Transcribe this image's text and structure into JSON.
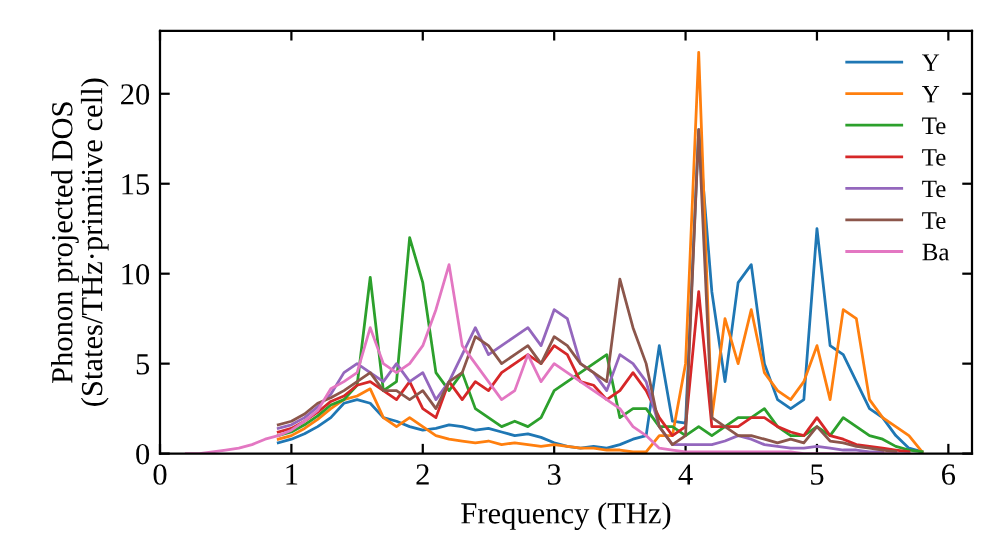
{
  "chart_data": {
    "type": "line",
    "xlabel": "Frequency (THz)",
    "ylabel": "Phonon projected DOS\n(States/THz·primitive cell)",
    "x": [
      0.2,
      0.3,
      0.4,
      0.5,
      0.6,
      0.7,
      0.8,
      0.9,
      1.0,
      1.1,
      1.2,
      1.3,
      1.4,
      1.5,
      1.6,
      1.7,
      1.8,
      1.9,
      2.0,
      2.1,
      2.2,
      2.3,
      2.4,
      2.5,
      2.6,
      2.7,
      2.8,
      2.9,
      3.0,
      3.1,
      3.2,
      3.3,
      3.4,
      3.5,
      3.6,
      3.7,
      3.8,
      3.9,
      4.0,
      4.1,
      4.2,
      4.3,
      4.4,
      4.5,
      4.6,
      4.7,
      4.8,
      4.9,
      5.0,
      5.1,
      5.2,
      5.3,
      5.4,
      5.5,
      5.6,
      5.7,
      5.8
    ],
    "series": [
      {
        "name": "Y",
        "color": "#1f77b4",
        "values": [
          null,
          null,
          null,
          null,
          null,
          null,
          null,
          0.6,
          0.8,
          1.1,
          1.5,
          2.0,
          2.8,
          3.0,
          2.8,
          2.0,
          1.8,
          1.5,
          1.3,
          1.4,
          1.6,
          1.5,
          1.3,
          1.4,
          1.2,
          1.0,
          1.1,
          0.9,
          0.6,
          0.4,
          0.3,
          0.4,
          0.3,
          0.5,
          0.8,
          1.0,
          6.0,
          1.8,
          1.7,
          18,
          9.0,
          4.0,
          9.5,
          10.5,
          5,
          3,
          2.5,
          3,
          12.5,
          6,
          5.5,
          4,
          2.5,
          2.0,
          1.0,
          0.3,
          0.1
        ]
      },
      {
        "name": "Y",
        "color": "#ff7f0e",
        "values": [
          null,
          null,
          null,
          null,
          null,
          null,
          null,
          0.8,
          1.0,
          1.4,
          1.9,
          2.5,
          3.0,
          3.2,
          3.6,
          2.0,
          1.5,
          2.0,
          1.5,
          1.0,
          0.8,
          0.7,
          0.6,
          0.7,
          0.5,
          0.6,
          0.5,
          0.4,
          0.5,
          0.4,
          0.3,
          0.3,
          0.2,
          0.2,
          0.1,
          0.1,
          1.0,
          1.0,
          5,
          22.3,
          2.0,
          7.5,
          5,
          8,
          4.5,
          3.5,
          3,
          4,
          6,
          3,
          8,
          7.5,
          3,
          2,
          1.5,
          1.0,
          0.1
        ]
      },
      {
        "name": "Te",
        "color": "#2ca02c",
        "values": [
          null,
          null,
          null,
          null,
          null,
          null,
          null,
          1.0,
          1.2,
          1.6,
          2.1,
          2.7,
          3.0,
          3.8,
          9.8,
          3.5,
          4.0,
          12.0,
          9.5,
          4.5,
          3.5,
          4.5,
          2.5,
          2.0,
          1.5,
          1.8,
          1.5,
          2.0,
          3.5,
          4.0,
          4.5,
          5.0,
          5.5,
          2.0,
          2.5,
          2.5,
          1.5,
          1.5,
          1.0,
          1.5,
          1.0,
          1.5,
          2.0,
          2.0,
          2.5,
          1.5,
          1.0,
          1.0,
          1.5,
          1.0,
          2.0,
          1.5,
          1.0,
          0.8,
          0.4,
          0.2,
          0.1
        ]
      },
      {
        "name": "Te",
        "color": "#d62728",
        "values": [
          null,
          null,
          null,
          null,
          null,
          null,
          null,
          1.2,
          1.4,
          1.8,
          2.3,
          2.9,
          3.2,
          3.8,
          4.0,
          3.5,
          3.0,
          4.0,
          2.5,
          2.0,
          4.0,
          3.0,
          4.0,
          3.5,
          4.5,
          5.0,
          5.5,
          5.0,
          6.0,
          5.5,
          4.0,
          3.8,
          3.0,
          3.5,
          4.5,
          3.5,
          2.0,
          1.0,
          1.5,
          9.0,
          1.5,
          1.5,
          1.5,
          2.0,
          2.0,
          1.5,
          1.2,
          1.0,
          2.0,
          1.0,
          0.8,
          0.5,
          0.4,
          0.3,
          0.2,
          0.1,
          null
        ]
      },
      {
        "name": "Te",
        "color": "#9467bd",
        "values": [
          null,
          null,
          null,
          null,
          null,
          null,
          null,
          1.4,
          1.6,
          2.0,
          2.6,
          3.3,
          4.5,
          5.0,
          4.5,
          4.0,
          5.0,
          4.0,
          4.5,
          3.0,
          4.0,
          5.5,
          7.0,
          5.5,
          6.0,
          6.5,
          7.0,
          6.0,
          8.0,
          7.5,
          5.0,
          4.5,
          3.5,
          5.5,
          5.0,
          4.0,
          1.5,
          0.5,
          0.5,
          0.5,
          0.5,
          0.7,
          1.0,
          0.8,
          0.5,
          0.4,
          0.3,
          0.3,
          0.4,
          0.3,
          0.2,
          0.2,
          0.1,
          0.1,
          null,
          null,
          null
        ]
      },
      {
        "name": "Te",
        "color": "#8c564b",
        "values": [
          null,
          null,
          null,
          null,
          null,
          null,
          null,
          1.6,
          1.8,
          2.2,
          2.8,
          3.1,
          3.5,
          4.0,
          4.5,
          3.5,
          3.5,
          3.0,
          3.5,
          2.5,
          4.0,
          4.5,
          6.5,
          6.0,
          5.0,
          5.5,
          6.0,
          5.0,
          6.5,
          6.0,
          5.0,
          4.5,
          4.0,
          9.7,
          7.0,
          5.0,
          1.5,
          0.5,
          1.0,
          18.0,
          2.0,
          1.5,
          1.0,
          1.0,
          0.8,
          0.6,
          0.8,
          0.6,
          1.5,
          0.7,
          0.6,
          0.4,
          0.3,
          0.2,
          0.1,
          null,
          null
        ]
      },
      {
        "name": "Ba",
        "color": "#e377c2",
        "values": [
          0,
          0,
          0.1,
          0.2,
          0.3,
          0.5,
          0.8,
          1.0,
          1.3,
          1.8,
          2.4,
          3.6,
          4.0,
          4.5,
          7.0,
          5.0,
          4.5,
          5.0,
          6.0,
          8.0,
          10.5,
          6.0,
          5.0,
          4.0,
          3.0,
          3.5,
          5.5,
          4.0,
          5.0,
          4.5,
          4.0,
          3.5,
          3.0,
          2.5,
          1.5,
          1.0,
          0.3,
          0.2,
          0.1,
          0.1,
          0.1,
          0.1,
          0.1,
          0.1,
          0.1,
          0.1,
          0.1,
          0,
          0,
          0,
          0,
          0,
          0,
          0,
          0,
          0,
          null
        ]
      }
    ],
    "xlim": [
      0,
      6.18
    ],
    "ylim": [
      0,
      23.5
    ],
    "xticks": [
      0,
      1,
      2,
      3,
      4,
      5,
      6
    ],
    "yticks": [
      0,
      5,
      10,
      15,
      20
    ],
    "legend": "top right",
    "grid": false,
    "marker": "none",
    "line_style": "solid"
  }
}
